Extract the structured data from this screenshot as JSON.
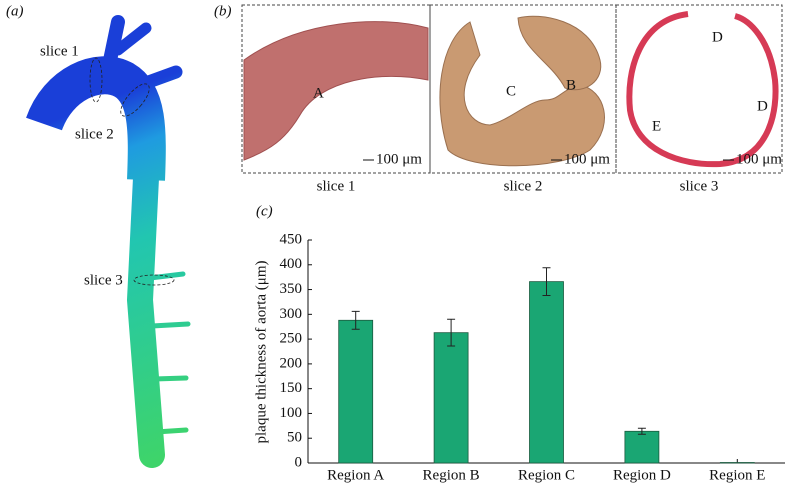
{
  "panel_a": {
    "label": "(a)",
    "slices": [
      "slice 1",
      "slice 2",
      "slice 3"
    ]
  },
  "panel_b": {
    "label": "(b)",
    "images": [
      {
        "caption": "slice 1",
        "regions": [
          "A"
        ],
        "scale_bar": "100 μm"
      },
      {
        "caption": "slice 2",
        "regions": [
          "C",
          "B"
        ],
        "scale_bar": "100 μm"
      },
      {
        "caption": "slice 3",
        "regions": [
          "D",
          "D",
          "E"
        ],
        "scale_bar": "100 μm"
      }
    ]
  },
  "chart_data": {
    "type": "bar",
    "panel_label": "(c)",
    "y_label": "plaque thickness of aorta (μm)",
    "categories": [
      "Region A",
      "Region B",
      "Region C",
      "Region D",
      "Region E"
    ],
    "values": [
      288,
      263,
      366,
      64,
      1
    ],
    "errors": [
      18,
      27,
      28,
      6,
      0
    ],
    "color": "#1aa673",
    "ylim": [
      0,
      450
    ],
    "yticks": [
      0,
      50,
      100,
      150,
      200,
      250,
      300,
      350,
      400,
      450
    ],
    "grid": false
  }
}
